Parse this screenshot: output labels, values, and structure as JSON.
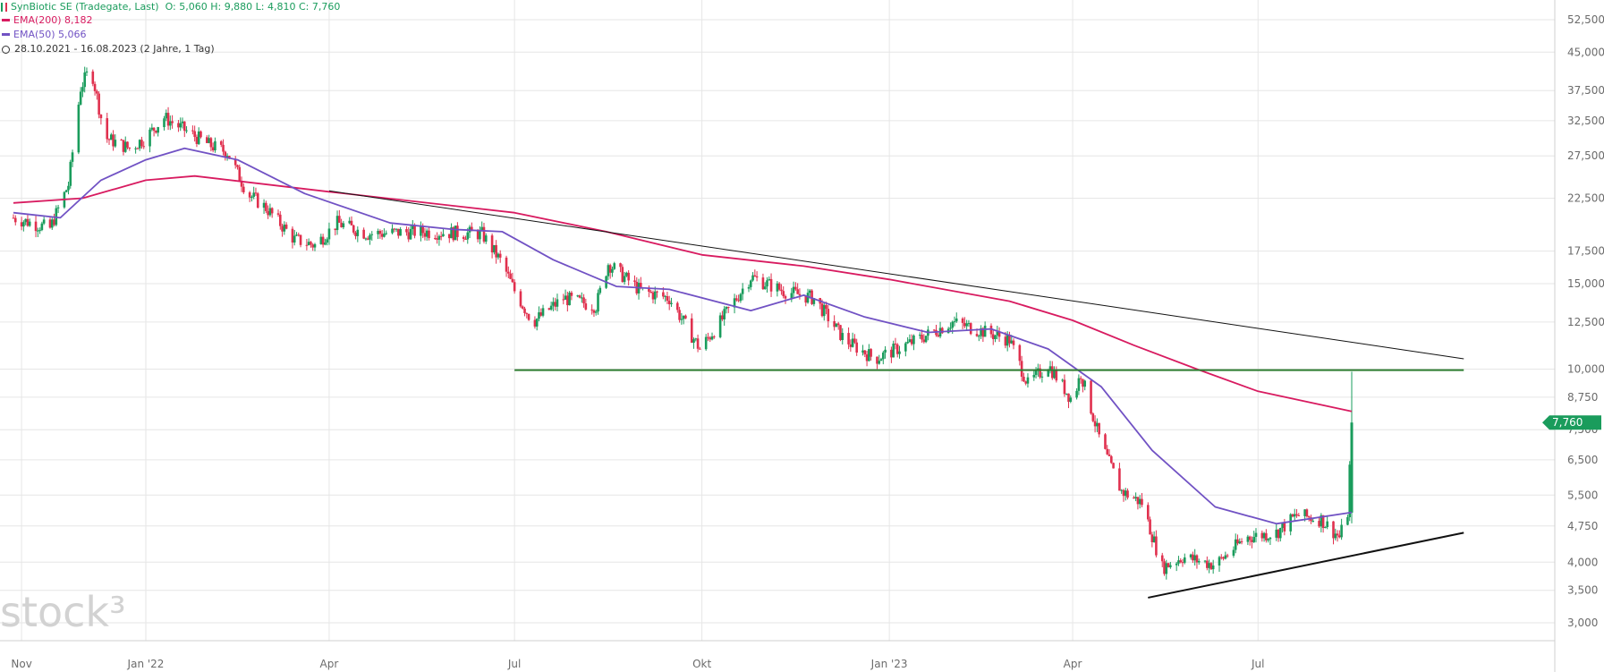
{
  "header": {
    "instrument": "SynBiotic SE (Tradegate, Last)",
    "ohlc": "O: 5,060  H: 9,880  L: 4,810  C: 7,760",
    "ema200": "EMA(200) 8,182",
    "ema50": "EMA(50) 5,066",
    "range": "28.10.2021 - 16.08.2023  (2 Jahre, 1 Tag)"
  },
  "watermark": "stock³",
  "last_price_label": "7,760",
  "colors": {
    "up": "#1a9c5c",
    "down": "#e0304e",
    "ema200": "#d81b60",
    "ema50": "#7152c4",
    "support_line": "#2e7d32",
    "trend_line": "#111111",
    "grid": "#e6e6e6",
    "label_bg": "#1a9c5c"
  },
  "chart_data": {
    "type": "candlestick",
    "title": "SynBiotic SE (Tradegate, Last)",
    "x_range": [
      "2021-10-28",
      "2023-08-16"
    ],
    "x_tick_labels": [
      {
        "date": "2021-11-01",
        "label": "Nov"
      },
      {
        "date": "2022-01-01",
        "label": "Jan '22"
      },
      {
        "date": "2022-04-01",
        "label": "Apr"
      },
      {
        "date": "2022-07-01",
        "label": "Jul"
      },
      {
        "date": "2022-10-01",
        "label": "Okt"
      },
      {
        "date": "2023-01-01",
        "label": "Jan '23"
      },
      {
        "date": "2023-04-01",
        "label": "Apr"
      },
      {
        "date": "2023-07-01",
        "label": "Jul"
      }
    ],
    "y_scale": "log",
    "y_range": [
      2.9,
      55
    ],
    "y_ticks": [
      52.5,
      45,
      37.5,
      32.5,
      27.5,
      22.5,
      17.5,
      15,
      12.5,
      10,
      8.75,
      7.5,
      6.5,
      5.5,
      4.75,
      4,
      3.5,
      3
    ],
    "y_tick_labels": [
      "52,500",
      "45,000",
      "37,500",
      "32,500",
      "27,500",
      "22,500",
      "17,500",
      "15,000",
      "12,500",
      "10,000",
      "8,750",
      "7,500",
      "6,500",
      "5,500",
      "4,750",
      "4,000",
      "3,500",
      "3,000"
    ],
    "grid": true,
    "last_close": 7.76,
    "last_candle": {
      "date": "2023-08-16",
      "open": 5.06,
      "high": 9.88,
      "low": 4.81,
      "close": 7.76
    },
    "close_series": [
      {
        "date": "2021-10-28",
        "close": 20.5
      },
      {
        "date": "2021-11-15",
        "close": 19.5
      },
      {
        "date": "2021-11-24",
        "close": 24.0
      },
      {
        "date": "2021-11-30",
        "close": 38.0
      },
      {
        "date": "2021-12-05",
        "close": 42.0
      },
      {
        "date": "2021-12-12",
        "close": 30.0
      },
      {
        "date": "2021-12-24",
        "close": 28.5
      },
      {
        "date": "2022-01-01",
        "close": 30.0
      },
      {
        "date": "2022-01-10",
        "close": 33.0
      },
      {
        "date": "2022-02-01",
        "close": 29.0
      },
      {
        "date": "2022-02-10",
        "close": 28.0
      },
      {
        "date": "2022-02-20",
        "close": 23.0
      },
      {
        "date": "2022-03-01",
        "close": 21.5
      },
      {
        "date": "2022-03-15",
        "close": 18.5
      },
      {
        "date": "2022-03-25",
        "close": 18.0
      },
      {
        "date": "2022-04-05",
        "close": 20.0
      },
      {
        "date": "2022-04-20",
        "close": 19.0
      },
      {
        "date": "2022-05-15",
        "close": 19.2
      },
      {
        "date": "2022-06-15",
        "close": 19.0
      },
      {
        "date": "2022-06-25",
        "close": 16.5
      },
      {
        "date": "2022-07-01",
        "close": 14.5
      },
      {
        "date": "2022-07-10",
        "close": 12.5
      },
      {
        "date": "2022-07-25",
        "close": 14.0
      },
      {
        "date": "2022-08-10",
        "close": 13.5
      },
      {
        "date": "2022-08-16",
        "close": 16.5
      },
      {
        "date": "2022-09-01",
        "close": 14.5
      },
      {
        "date": "2022-09-15",
        "close": 14.0
      },
      {
        "date": "2022-09-30",
        "close": 11.0
      },
      {
        "date": "2022-10-10",
        "close": 12.5
      },
      {
        "date": "2022-10-25",
        "close": 15.5
      },
      {
        "date": "2022-11-10",
        "close": 14.5
      },
      {
        "date": "2022-11-25",
        "close": 14.0
      },
      {
        "date": "2022-12-10",
        "close": 11.5
      },
      {
        "date": "2022-12-25",
        "close": 10.5
      },
      {
        "date": "2023-01-15",
        "close": 11.5
      },
      {
        "date": "2023-02-01",
        "close": 12.5
      },
      {
        "date": "2023-02-15",
        "close": 12.0
      },
      {
        "date": "2023-03-01",
        "close": 11.5
      },
      {
        "date": "2023-03-10",
        "close": 9.3
      },
      {
        "date": "2023-03-20",
        "close": 10.2
      },
      {
        "date": "2023-04-01",
        "close": 8.6
      },
      {
        "date": "2023-04-05",
        "close": 9.8
      },
      {
        "date": "2023-04-15",
        "close": 7.0
      },
      {
        "date": "2023-04-25",
        "close": 5.6
      },
      {
        "date": "2023-05-05",
        "close": 5.3
      },
      {
        "date": "2023-05-15",
        "close": 3.9
      },
      {
        "date": "2023-05-25",
        "close": 4.1
      },
      {
        "date": "2023-06-10",
        "close": 3.95
      },
      {
        "date": "2023-06-25",
        "close": 4.5
      },
      {
        "date": "2023-07-10",
        "close": 4.6
      },
      {
        "date": "2023-07-20",
        "close": 5.0
      },
      {
        "date": "2023-08-01",
        "close": 4.9
      },
      {
        "date": "2023-08-10",
        "close": 4.5
      },
      {
        "date": "2023-08-14",
        "close": 5.06
      },
      {
        "date": "2023-08-16",
        "close": 7.76
      }
    ],
    "series": [
      {
        "name": "EMA(200)",
        "last_value": 8.182,
        "points": [
          {
            "date": "2021-10-28",
            "value": 22.0
          },
          {
            "date": "2021-12-01",
            "value": 22.5
          },
          {
            "date": "2022-01-01",
            "value": 24.5
          },
          {
            "date": "2022-01-25",
            "value": 25.0
          },
          {
            "date": "2022-04-01",
            "value": 23.2
          },
          {
            "date": "2022-07-01",
            "value": 21.0
          },
          {
            "date": "2022-08-15",
            "value": 19.2
          },
          {
            "date": "2022-10-01",
            "value": 17.2
          },
          {
            "date": "2022-11-20",
            "value": 16.3
          },
          {
            "date": "2023-01-01",
            "value": 15.3
          },
          {
            "date": "2023-03-01",
            "value": 13.8
          },
          {
            "date": "2023-04-01",
            "value": 12.6
          },
          {
            "date": "2023-05-01",
            "value": 11.2
          },
          {
            "date": "2023-06-01",
            "value": 10.0
          },
          {
            "date": "2023-07-01",
            "value": 9.0
          },
          {
            "date": "2023-08-16",
            "value": 8.182
          }
        ]
      },
      {
        "name": "EMA(50)",
        "last_value": 5.066,
        "points": [
          {
            "date": "2021-10-28",
            "value": 21.0
          },
          {
            "date": "2021-11-20",
            "value": 20.5
          },
          {
            "date": "2021-12-10",
            "value": 24.5
          },
          {
            "date": "2022-01-01",
            "value": 27.0
          },
          {
            "date": "2022-01-20",
            "value": 28.5
          },
          {
            "date": "2022-02-15",
            "value": 27.0
          },
          {
            "date": "2022-03-20",
            "value": 23.0
          },
          {
            "date": "2022-05-01",
            "value": 20.0
          },
          {
            "date": "2022-06-01",
            "value": 19.4
          },
          {
            "date": "2022-06-25",
            "value": 19.2
          },
          {
            "date": "2022-07-20",
            "value": 16.8
          },
          {
            "date": "2022-08-20",
            "value": 14.8
          },
          {
            "date": "2022-09-15",
            "value": 14.6
          },
          {
            "date": "2022-10-25",
            "value": 13.2
          },
          {
            "date": "2022-11-20",
            "value": 14.2
          },
          {
            "date": "2022-12-20",
            "value": 12.8
          },
          {
            "date": "2023-01-20",
            "value": 11.9
          },
          {
            "date": "2023-02-20",
            "value": 12.1
          },
          {
            "date": "2023-03-20",
            "value": 11.0
          },
          {
            "date": "2023-04-15",
            "value": 9.2
          },
          {
            "date": "2023-05-10",
            "value": 6.8
          },
          {
            "date": "2023-06-10",
            "value": 5.2
          },
          {
            "date": "2023-07-10",
            "value": 4.8
          },
          {
            "date": "2023-08-16",
            "value": 5.066
          }
        ]
      }
    ],
    "trend_lines": [
      {
        "name": "resistance-trendline",
        "color_key": "trend_line",
        "from": {
          "date": "2022-04-01",
          "value": 23.3
        },
        "to": {
          "date": "2023-10-10",
          "value": 10.5
        }
      },
      {
        "name": "support-horizontal",
        "color_key": "support_line",
        "from": {
          "date": "2022-07-01",
          "value": 9.95
        },
        "to": {
          "date": "2023-10-10",
          "value": 9.95
        }
      },
      {
        "name": "rising-support-trendline",
        "color_key": "trend_line",
        "from": {
          "date": "2023-05-08",
          "value": 3.38
        },
        "to": {
          "date": "2023-10-10",
          "value": 4.6
        }
      }
    ]
  }
}
